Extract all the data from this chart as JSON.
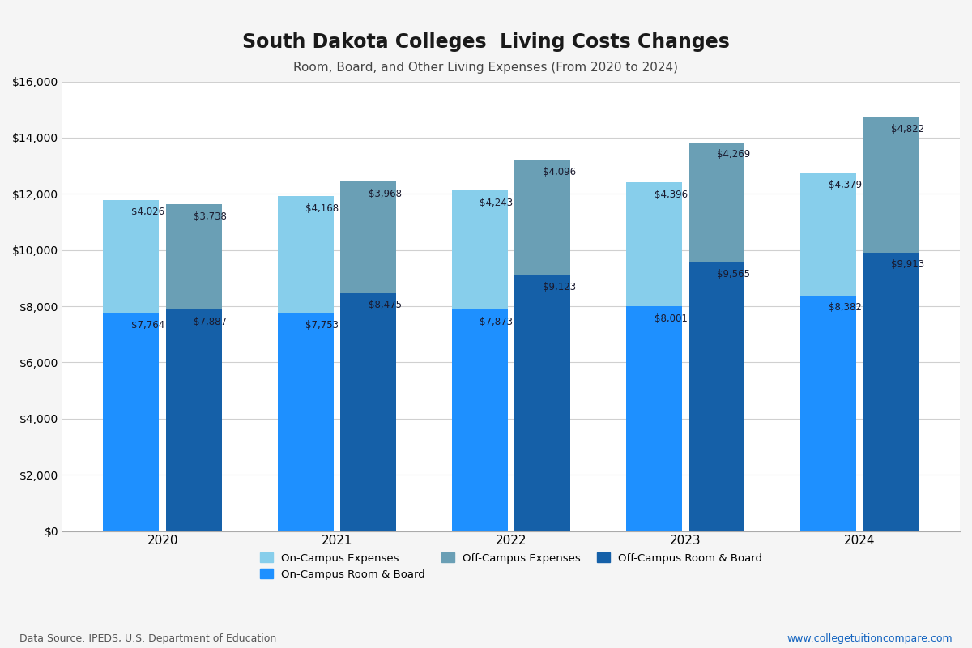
{
  "title": "South Dakota Colleges  Living Costs Changes",
  "subtitle": "Room, Board, and Other Living Expenses (From 2020 to 2024)",
  "years": [
    2020,
    2021,
    2022,
    2023,
    2024
  ],
  "on_campus_room_board": [
    7764,
    7753,
    7873,
    8001,
    8382
  ],
  "on_campus_other": [
    4026,
    4168,
    4243,
    4396,
    4379
  ],
  "off_campus_room_board": [
    7887,
    8475,
    9123,
    9565,
    9913
  ],
  "off_campus_other": [
    3738,
    3968,
    4096,
    4269,
    4822
  ],
  "colors": {
    "on_campus_room_board": "#1E90FF",
    "on_campus_other": "#87CEEB",
    "off_campus_room_board": "#1560A8",
    "off_campus_other": "#6A9FB5"
  },
  "ylim": [
    0,
    16000
  ],
  "yticks": [
    0,
    2000,
    4000,
    6000,
    8000,
    10000,
    12000,
    14000,
    16000
  ],
  "background_color": "#f5f5f5",
  "plot_bg_color": "#ffffff",
  "data_source": "Data Source: IPEDS, U.S. Department of Education",
  "website": "www.collegetuitioncompare.com",
  "legend_labels": [
    "On-Campus Expenses",
    "On-Campus Room & Board",
    "Off-Campus Expenses",
    "Off-Campus Room & Board"
  ]
}
